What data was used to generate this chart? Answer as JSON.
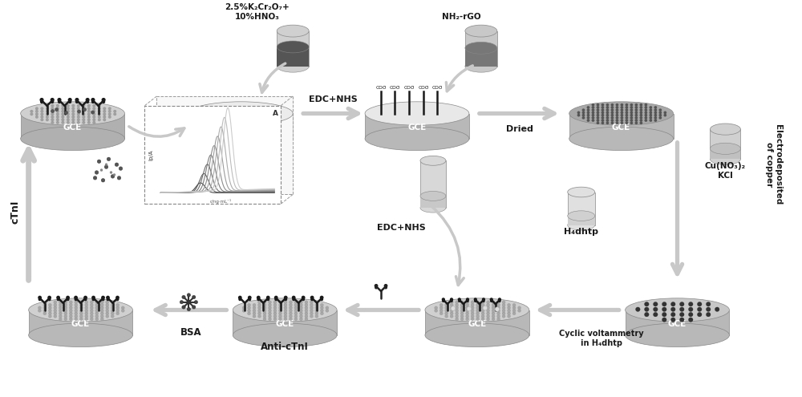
{
  "bg_color": "#ffffff",
  "fig_width": 10.0,
  "fig_height": 4.95,
  "dpi": 100,
  "labels": {
    "chemical1": "2.5%K₂Cr₂O₇+\n10%HNO₃",
    "nh2rgo": "NH₂-rGO",
    "edc_nhs_1": "EDC+NHS",
    "dried": "Dried",
    "electrodep": "Electrodeposited\nof copper",
    "cu_reagent": "Cu(NO₃)₂\nKCl",
    "h4dhtp": "H₄dhtp",
    "cyclic": "Cyclic voltammetry\nin H₄dhtp",
    "edc_nhs_2": "EDC+NHS",
    "anti_ctni": "Anti-cTnI",
    "bsa": "BSA",
    "ctni": "cTnI"
  },
  "arrow_color": "#c8c8c8",
  "dark_text": "#1a1a1a",
  "gce_side": "#b8b8b8",
  "gce_top_plain": "#e0e0e0",
  "gce_top_rgo": "#999999",
  "gce_top_cu": "#c0c0c0"
}
